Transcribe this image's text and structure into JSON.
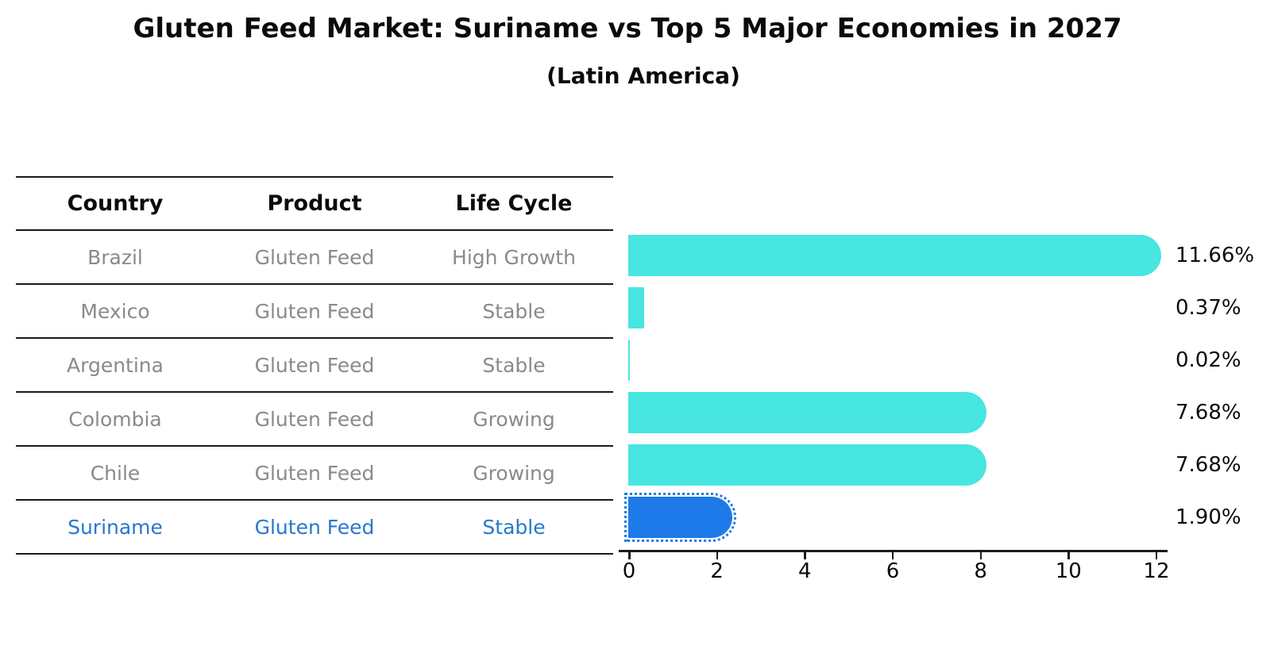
{
  "chart_data": {
    "type": "bar",
    "orientation": "horizontal",
    "title": "Gluten Feed Market: Suriname vs Top 5 Major Economies in 2027",
    "subtitle": "(Latin America)",
    "xlabel": "",
    "ylabel": "",
    "xlim": [
      0,
      12
    ],
    "x_ticks": [
      "0",
      "2",
      "4",
      "6",
      "8",
      "10",
      "12"
    ],
    "grid": false,
    "legend": false,
    "table_columns": [
      "Country",
      "Product",
      "Life Cycle"
    ],
    "rows": [
      {
        "country": "Brazil",
        "product": "Gluten Feed",
        "life_cycle": "High Growth",
        "value": 11.66,
        "value_label": "11.66%",
        "highlight": false
      },
      {
        "country": "Mexico",
        "product": "Gluten Feed",
        "life_cycle": "Stable",
        "value": 0.37,
        "value_label": "0.37%",
        "highlight": false
      },
      {
        "country": "Argentina",
        "product": "Gluten Feed",
        "life_cycle": "Stable",
        "value": 0.02,
        "value_label": "0.02%",
        "highlight": false
      },
      {
        "country": "Colombia",
        "product": "Gluten Feed",
        "life_cycle": "Growing",
        "value": 7.68,
        "value_label": "7.68%",
        "highlight": false
      },
      {
        "country": "Chile",
        "product": "Gluten Feed",
        "life_cycle": "Growing",
        "value": 7.68,
        "value_label": "7.68%",
        "highlight": false
      },
      {
        "country": "Suriname",
        "product": "Gluten Feed",
        "life_cycle": "Stable",
        "value": 1.9,
        "value_label": "1.90%",
        "highlight": true
      }
    ],
    "colors": {
      "bar": "#47E6E1",
      "highlight_bar": "#1E7AE8",
      "highlight_text": "#2878CB",
      "row_text": "#8a8a8a",
      "header_text": "#0b0b0b",
      "value_label_text": "#0b0b0b"
    }
  }
}
